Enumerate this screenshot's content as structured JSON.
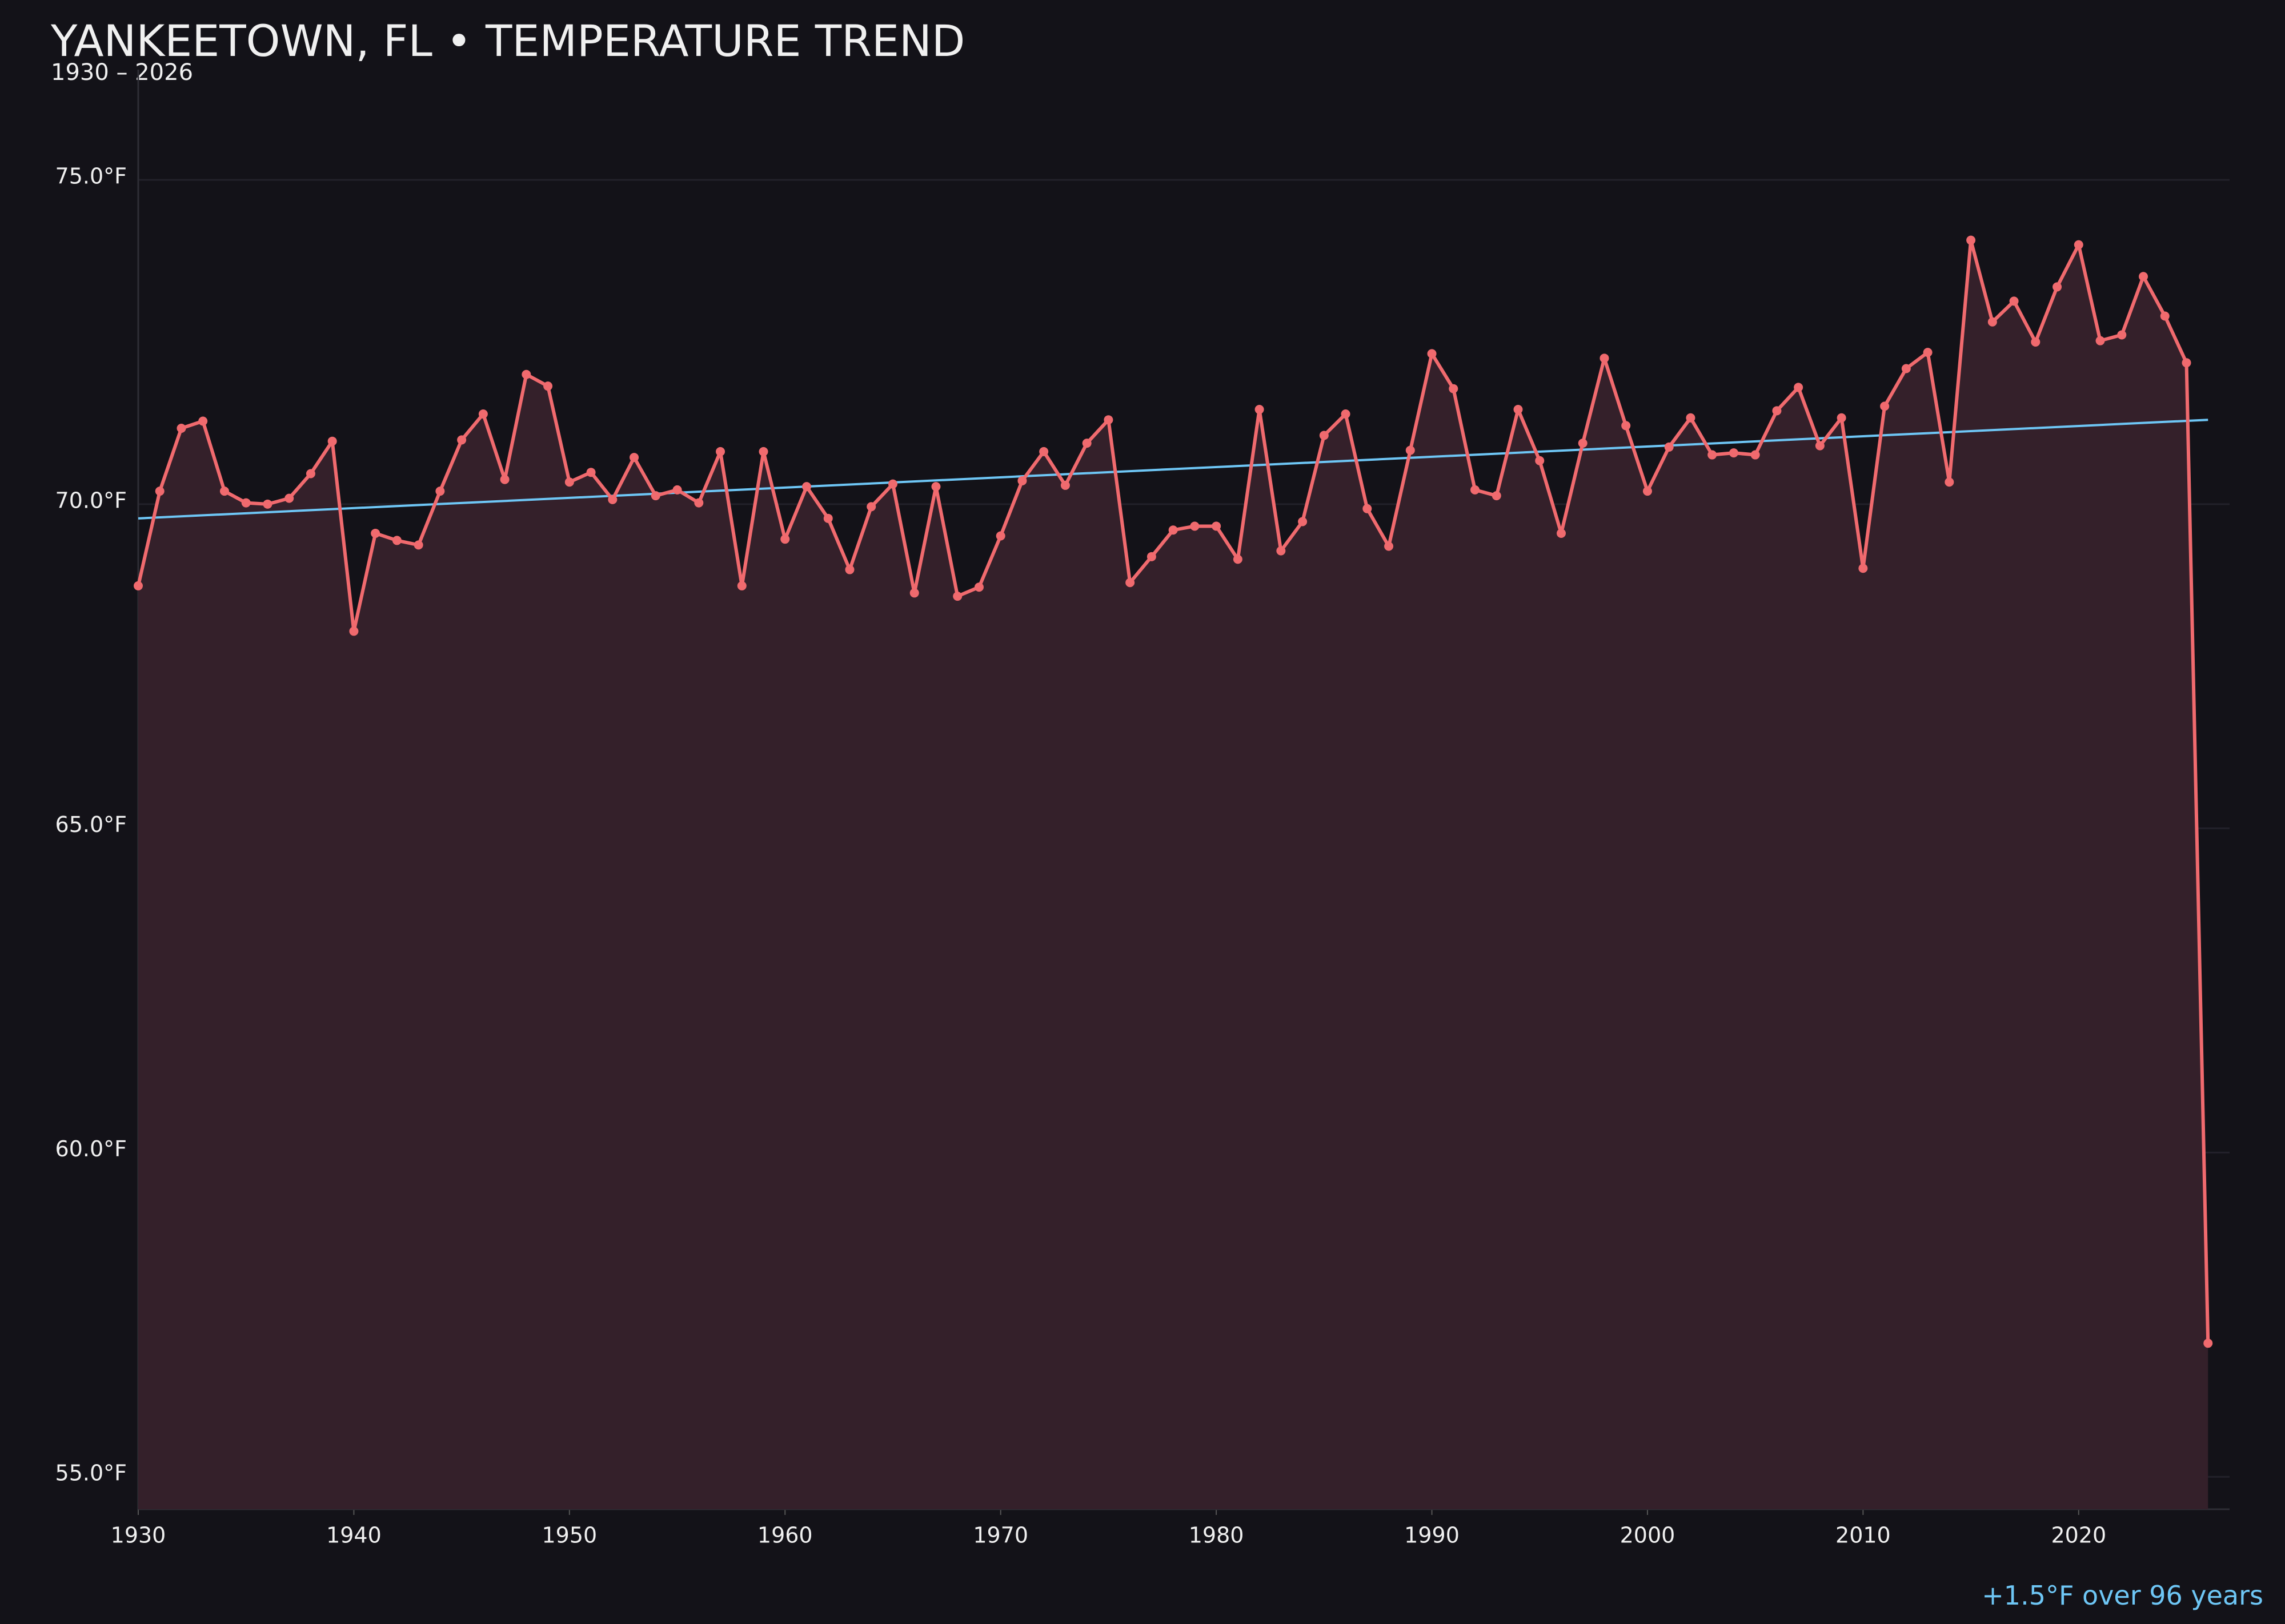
{
  "chart_data": {
    "type": "line",
    "title": "YANKEETOWN, FL • TEMPERATURE TREND",
    "subtitle": "1930 – 2026",
    "annotation": "+1.5°F over 96 years",
    "x": [
      1930,
      1931,
      1932,
      1933,
      1934,
      1935,
      1936,
      1937,
      1938,
      1939,
      1940,
      1941,
      1942,
      1943,
      1944,
      1945,
      1946,
      1947,
      1948,
      1949,
      1950,
      1951,
      1952,
      1953,
      1954,
      1955,
      1956,
      1957,
      1958,
      1959,
      1960,
      1961,
      1962,
      1963,
      1964,
      1965,
      1966,
      1967,
      1968,
      1969,
      1970,
      1971,
      1972,
      1973,
      1974,
      1975,
      1976,
      1977,
      1978,
      1979,
      1980,
      1981,
      1982,
      1983,
      1984,
      1985,
      1986,
      1987,
      1988,
      1989,
      1990,
      1991,
      1992,
      1993,
      1994,
      1995,
      1996,
      1997,
      1998,
      1999,
      2000,
      2001,
      2002,
      2003,
      2004,
      2005,
      2006,
      2007,
      2008,
      2009,
      2010,
      2011,
      2012,
      2013,
      2014,
      2015,
      2016,
      2017,
      2018,
      2019,
      2020,
      2021,
      2022,
      2023,
      2024,
      2025,
      2026
    ],
    "series": [
      {
        "color": "#f06a6e",
        "fill": "#34202a",
        "values": [
          68.74,
          70.2,
          71.17,
          71.28,
          70.2,
          70.02,
          70.0,
          70.09,
          70.47,
          70.97,
          68.04,
          69.55,
          69.44,
          69.37,
          70.2,
          70.99,
          71.39,
          70.38,
          72.0,
          71.82,
          70.34,
          70.49,
          70.07,
          70.72,
          70.13,
          70.22,
          70.02,
          70.81,
          68.74,
          70.81,
          69.46,
          70.27,
          69.78,
          68.99,
          69.96,
          70.31,
          68.63,
          70.27,
          68.58,
          68.72,
          69.51,
          70.36,
          70.81,
          70.29,
          70.94,
          71.3,
          68.79,
          69.19,
          69.6,
          69.66,
          69.66,
          69.15,
          71.46,
          69.28,
          69.73,
          71.06,
          71.39,
          69.93,
          69.35,
          70.83,
          72.32,
          71.78,
          70.22,
          70.13,
          71.46,
          70.67,
          69.55,
          70.94,
          72.25,
          71.21,
          70.2,
          70.88,
          71.33,
          70.76,
          70.79,
          70.76,
          71.44,
          71.8,
          70.9,
          71.33,
          69.01,
          71.51,
          72.09,
          72.34,
          70.34,
          74.07,
          72.81,
          73.13,
          72.5,
          73.35,
          74.0,
          72.52,
          72.61,
          73.51,
          72.9,
          72.18,
          57.06
        ]
      }
    ],
    "trend": {
      "color": "#6ec6f5",
      "x": [
        1930,
        2026
      ],
      "values": [
        69.78,
        71.3
      ]
    },
    "xlim": [
      1930,
      2027
    ],
    "ylim": [
      54.5,
      76.7
    ],
    "xticks": [
      1930,
      1940,
      1950,
      1960,
      1970,
      1980,
      1990,
      2000,
      2010,
      2020
    ],
    "yticks": [
      {
        "value": 55,
        "label": "55.0°F"
      },
      {
        "value": 60,
        "label": "60.0°F"
      },
      {
        "value": 65,
        "label": "65.0°F"
      },
      {
        "value": 70,
        "label": "70.0°F"
      },
      {
        "value": 75,
        "label": "75.0°F"
      }
    ],
    "grid": true
  }
}
